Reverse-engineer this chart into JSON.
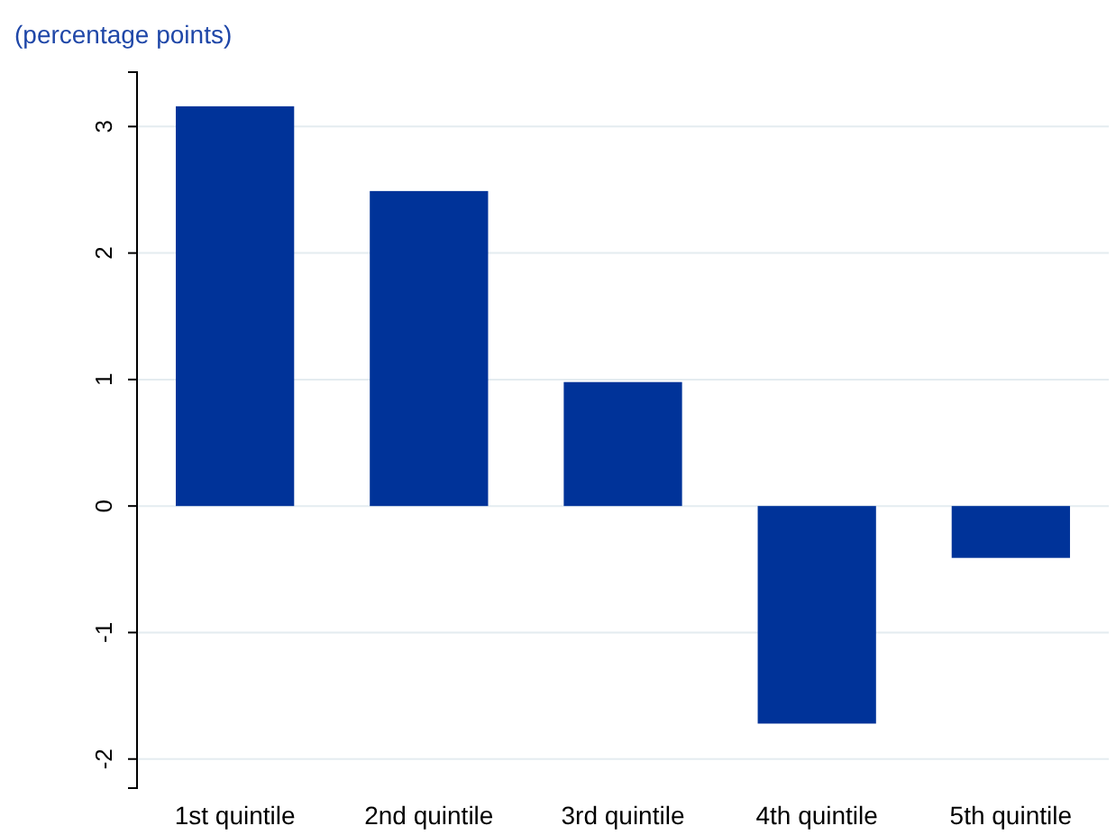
{
  "chart_data": {
    "type": "bar",
    "ylabel": "(percentage points)",
    "categories": [
      "1st quintile",
      "2nd quintile",
      "3rd quintile",
      "4th quintile",
      "5th quintile"
    ],
    "values": [
      3.16,
      2.49,
      0.98,
      -1.72,
      -0.41
    ],
    "color": "#003399",
    "ylim": [
      -2.23,
      3.43
    ],
    "yticks": [
      -2,
      -1,
      0,
      1,
      2,
      3
    ],
    "grid": "y"
  }
}
